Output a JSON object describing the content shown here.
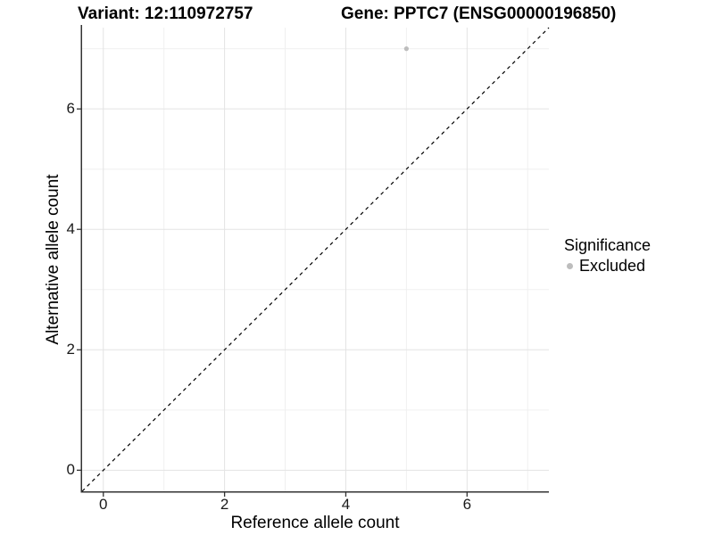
{
  "titles": {
    "variant": "Variant: 12:110972757",
    "gene": "Gene: PPTC7 (ENSG00000196850)"
  },
  "legend": {
    "title": "Significance",
    "items": [
      {
        "label": "Excluded",
        "color": "#bdbdbd"
      }
    ]
  },
  "chart_data": {
    "type": "scatter",
    "title": "Variant: 12:110972757  |  Gene: PPTC7 (ENSG00000196850)",
    "xlabel": "Reference allele count",
    "ylabel": "Alternative allele count",
    "xlim": [
      -0.35,
      7.35
    ],
    "ylim": [
      -0.35,
      7.35
    ],
    "x_ticks": [
      0,
      2,
      4,
      6
    ],
    "y_ticks": [
      0,
      2,
      4,
      6
    ],
    "x_minor_ticks": [
      1,
      3,
      5,
      7
    ],
    "y_minor_ticks": [
      1,
      3,
      5,
      7
    ],
    "grid": true,
    "legend_position": "right",
    "series": [
      {
        "name": "Excluded",
        "color": "#bdbdbd",
        "points": [
          {
            "x": 5,
            "y": 7
          }
        ]
      }
    ],
    "reference_line": {
      "type": "abline",
      "slope": 1,
      "intercept": 0,
      "style": "dashed",
      "color": "#000000"
    }
  },
  "colors": {
    "excluded_point": "#bdbdbd",
    "grid_major": "#e3e3e3",
    "grid_minor": "#f0f0f0",
    "axis_line": "#333333",
    "text": "#000000",
    "background": "#ffffff"
  }
}
